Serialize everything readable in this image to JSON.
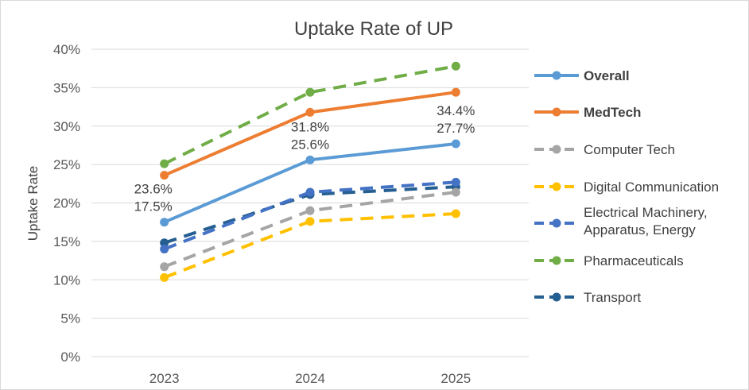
{
  "chart_data": {
    "type": "line",
    "title": "Uptake Rate of UP",
    "xlabel": "",
    "ylabel": "Uptake Rate",
    "categories": [
      "2023",
      "2024",
      "2025"
    ],
    "ylim": [
      0,
      40
    ],
    "yticks": [
      "0%",
      "5%",
      "10%",
      "15%",
      "20%",
      "25%",
      "30%",
      "35%",
      "40%"
    ],
    "grid": true,
    "legend_position": "right",
    "series": [
      {
        "name": "Overall",
        "values": [
          17.5,
          25.6,
          27.7
        ],
        "color": "#5b9bd5",
        "dashed": false,
        "bold": true,
        "labels": [
          "17.5%",
          "25.6%",
          "27.7%"
        ]
      },
      {
        "name": "MedTech",
        "values": [
          23.6,
          31.8,
          34.4
        ],
        "color": "#ed7d31",
        "dashed": false,
        "bold": true,
        "labels": [
          "23.6%",
          "31.8%",
          "34.4%"
        ]
      },
      {
        "name": "Computer Tech",
        "values": [
          11.7,
          19.0,
          21.4
        ],
        "color": "#a5a5a5",
        "dashed": true,
        "bold": false
      },
      {
        "name": "Digital Communication",
        "values": [
          10.3,
          17.6,
          18.6
        ],
        "color": "#ffc000",
        "dashed": true,
        "bold": false
      },
      {
        "name": "Electrical Machinery, Apparatus, Energy",
        "legend_lines": [
          "Electrical Machinery,",
          "Apparatus, Energy"
        ],
        "values": [
          14.0,
          21.4,
          22.7
        ],
        "color": "#4472c4",
        "dashed": true,
        "bold": false
      },
      {
        "name": "Pharmaceuticals",
        "values": [
          25.1,
          34.4,
          37.8
        ],
        "color": "#70ad47",
        "dashed": true,
        "bold": false
      },
      {
        "name": "Transport",
        "values": [
          14.8,
          21.1,
          22.1
        ],
        "color": "#255e91",
        "dashed": true,
        "bold": false
      }
    ]
  }
}
